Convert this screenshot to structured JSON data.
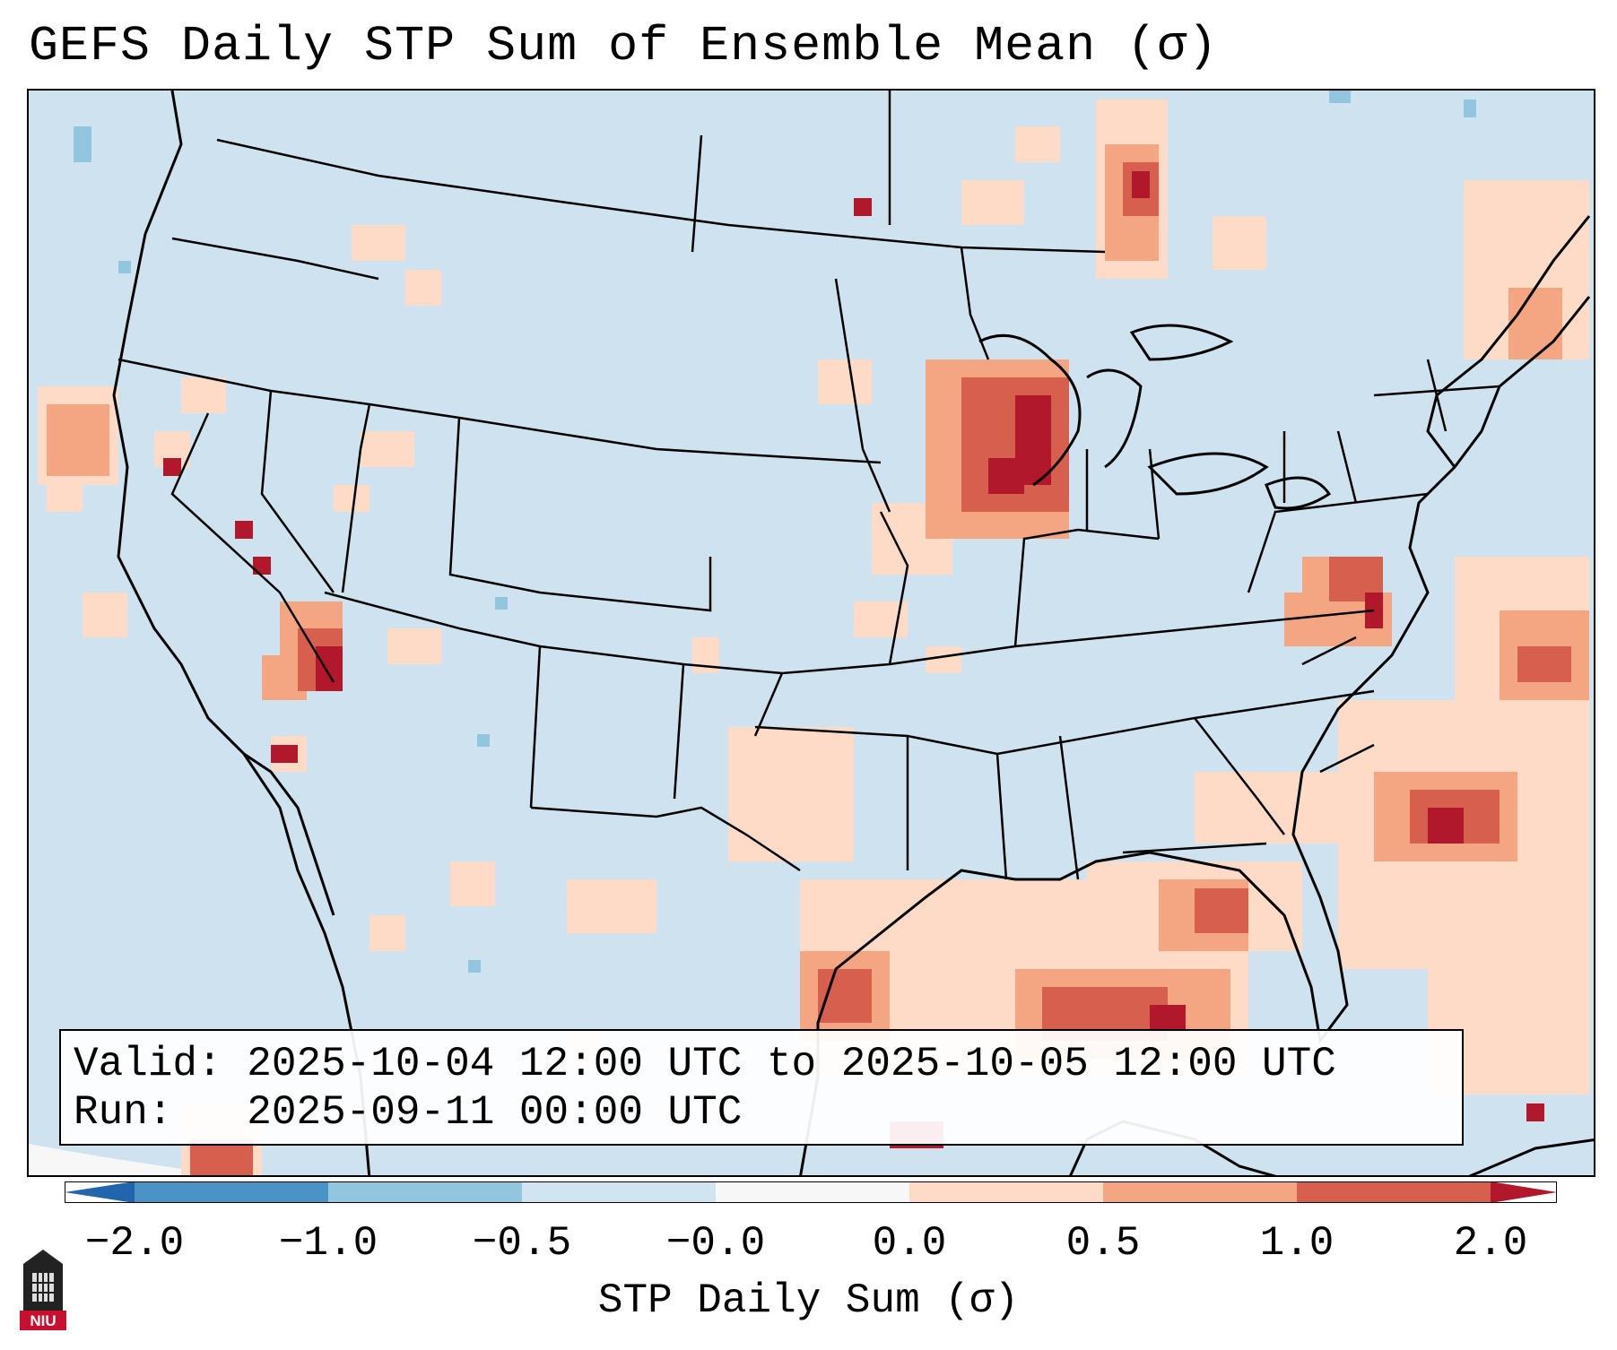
{
  "title": "GEFS Daily STP Sum of Ensemble Mean (σ)",
  "map": {
    "region": "Continental United States",
    "layers": [
      "state-boundaries",
      "coastlines",
      "stp-anomaly-grid"
    ]
  },
  "info": {
    "valid_label": "Valid:",
    "valid_value": "2025-10-04 12:00 UTC to 2025-10-05 12:00 UTC",
    "run_label": "Run:",
    "run_value": "2025-09-11 00:00 UTC"
  },
  "colorbar": {
    "label": "STP Daily Sum (σ)",
    "ticks": [
      "−2.0",
      "−1.0",
      "−0.5",
      "−0.0",
      "0.0",
      "0.5",
      "1.0",
      "2.0"
    ],
    "colors": [
      "#4a93c6",
      "#92c5de",
      "#d1e5f0",
      "#f7f7f7",
      "#fddbc7",
      "#f4a582",
      "#d6604d",
      "#b2182b"
    ]
  },
  "logo": {
    "text": "NIU"
  }
}
